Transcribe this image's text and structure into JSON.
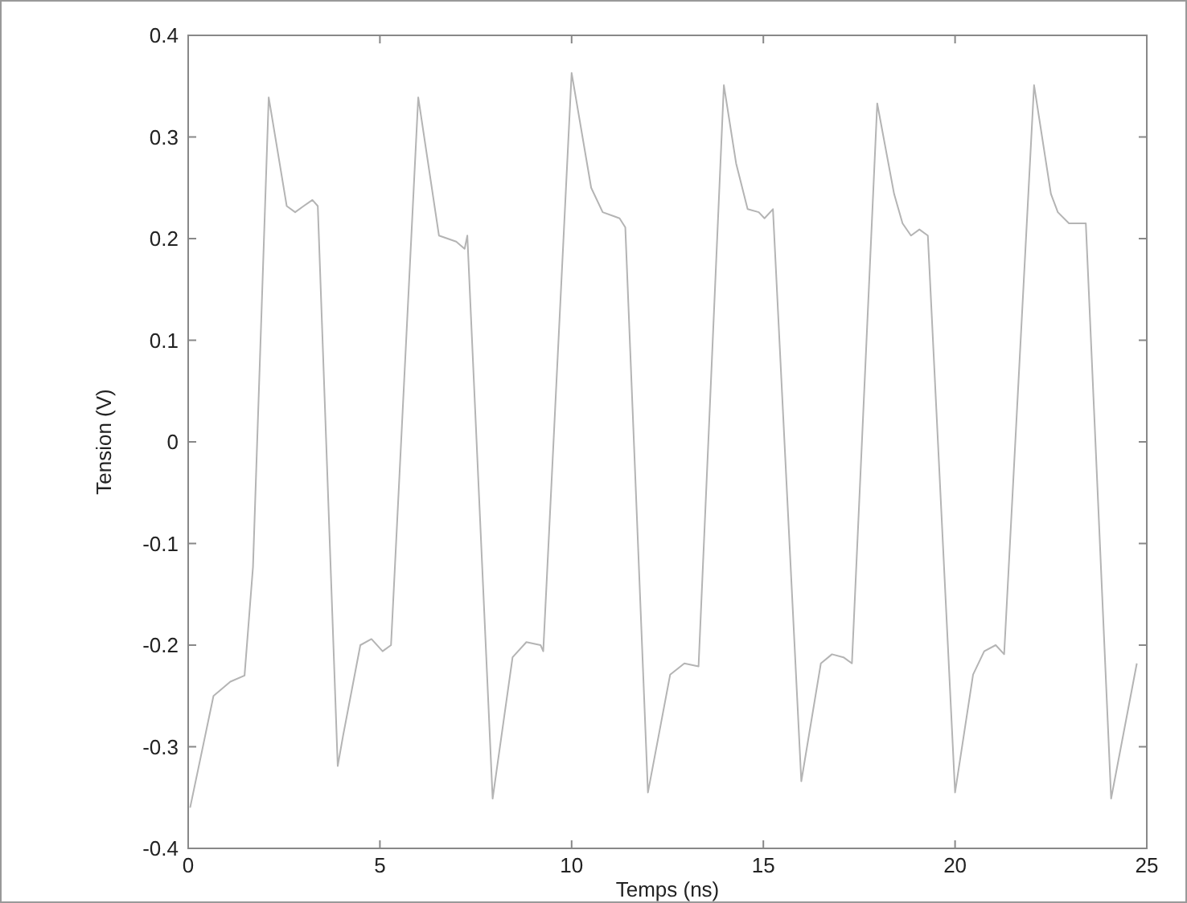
{
  "chart_data": {
    "type": "line",
    "xlabel": "Temps (ns)",
    "ylabel": "Tension (V)",
    "xlim": [
      0,
      25
    ],
    "xticks": [
      0,
      5,
      10,
      15,
      20,
      25
    ],
    "ylim": [
      -0.4,
      0.4
    ],
    "yticks": [
      -0.4,
      -0.3,
      -0.2,
      -0.1,
      0,
      0.1,
      0.2,
      0.3,
      0.4
    ],
    "grid": false,
    "series": [
      {
        "color": "#b4b4b4",
        "x": [
          0.05,
          0.66,
          1.1,
          1.47,
          1.69,
          2.1,
          2.57,
          2.79,
          3.01,
          3.24,
          3.38,
          3.9,
          4.04,
          4.49,
          4.78,
          5.07,
          5.29,
          6.0,
          6.54,
          6.99,
          7.21,
          7.28,
          7.94,
          8.46,
          8.82,
          9.19,
          9.26,
          10.0,
          10.51,
          10.81,
          11.25,
          11.4,
          11.99,
          12.57,
          12.94,
          13.31,
          13.97,
          14.29,
          14.59,
          14.88,
          15.03,
          15.25,
          15.99,
          16.5,
          16.79,
          17.09,
          17.31,
          17.97,
          18.41,
          18.63,
          18.85,
          19.07,
          19.29,
          20.0,
          20.47,
          20.76,
          21.06,
          21.28,
          22.06,
          22.5,
          22.68,
          22.97,
          23.27,
          23.41,
          24.07,
          24.74
        ],
        "values": [
          -0.36,
          -0.25,
          -0.236,
          -0.23,
          -0.123,
          0.339,
          0.232,
          0.226,
          0.232,
          0.238,
          0.232,
          -0.319,
          -0.289,
          -0.2,
          -0.194,
          -0.206,
          -0.2,
          0.339,
          0.203,
          0.197,
          0.19,
          0.203,
          -0.351,
          -0.212,
          -0.197,
          -0.2,
          -0.206,
          0.363,
          0.25,
          0.226,
          0.22,
          0.211,
          -0.345,
          -0.229,
          -0.218,
          -0.221,
          0.351,
          0.274,
          0.229,
          0.226,
          0.22,
          0.229,
          -0.334,
          -0.218,
          -0.209,
          -0.212,
          -0.218,
          0.333,
          0.244,
          0.215,
          0.203,
          0.209,
          0.203,
          -0.345,
          -0.229,
          -0.206,
          -0.2,
          -0.209,
          0.351,
          0.244,
          0.226,
          0.215,
          0.215,
          0.215,
          -0.351,
          -0.218
        ]
      }
    ]
  }
}
